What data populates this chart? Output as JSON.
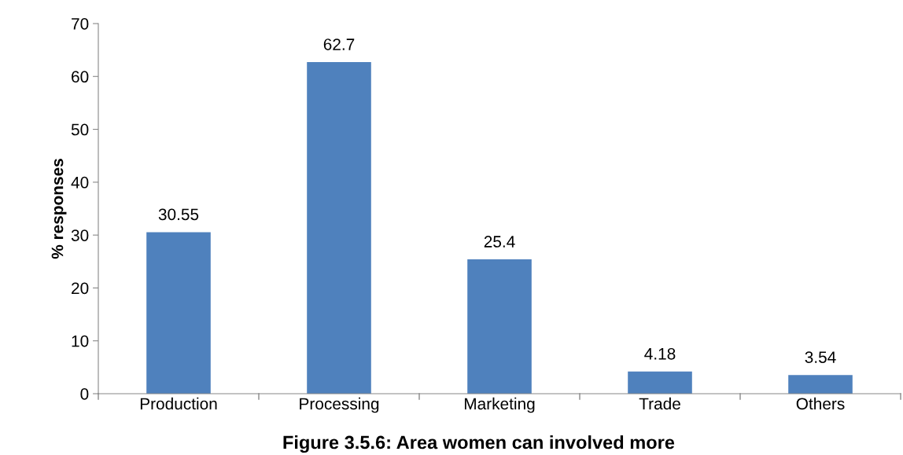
{
  "chart_data": {
    "type": "bar",
    "title": "Figure 3.5.6: Area women can involved more",
    "ylabel": "% responses",
    "categories": [
      "Production",
      "Processing",
      "Marketing",
      "Trade",
      "Others"
    ],
    "values": [
      30.55,
      62.7,
      25.4,
      4.18,
      3.54
    ],
    "color": "#4f81bd",
    "ylim": [
      0,
      70
    ],
    "yticks": [
      0,
      10,
      20,
      30,
      40,
      50,
      60,
      70
    ],
    "grid": false,
    "data_labels": true
  }
}
